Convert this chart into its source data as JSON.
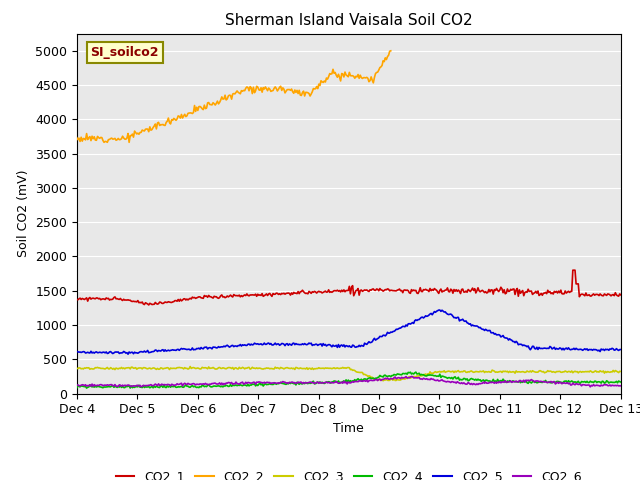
{
  "title": "Sherman Island Vaisala Soil CO2",
  "ylabel": "Soil CO2 (mV)",
  "xlabel": "Time",
  "xtick_labels": [
    "Dec 4",
    "Dec 5",
    "Dec 6",
    "Dec 7",
    "Dec 8",
    "Dec 9",
    "Dec 10",
    "Dec 11",
    "Dec 12",
    "Dec 13"
  ],
  "ylim": [
    0,
    5250
  ],
  "yticks": [
    0,
    500,
    1000,
    1500,
    2000,
    2500,
    3000,
    3500,
    4000,
    4500,
    5000
  ],
  "bg_color": "#e8e8e8",
  "legend_label": "SI_soilco2",
  "series_colors": {
    "CO2_1": "#cc0000",
    "CO2_2": "#ffa500",
    "CO2_3": "#cccc00",
    "CO2_4": "#00bb00",
    "CO2_5": "#0000dd",
    "CO2_6": "#9900bb"
  },
  "n_points": 500
}
